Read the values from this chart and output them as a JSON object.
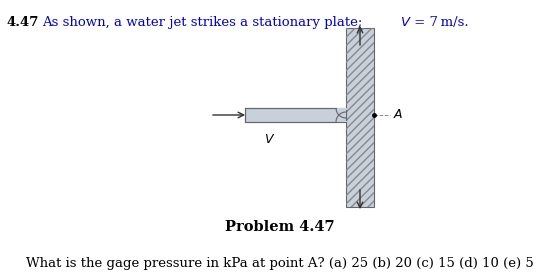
{
  "title_bold": "4.47",
  "title_text": " As shown, a water jet strikes a stationary plate; ",
  "title_italic_V": "V",
  "title_end": " = 7 m/s.",
  "problem_label": "Problem 4.47",
  "question_text": "What is the gage pressure in kPa at point A? (a) 25 (b) 20 (c) 15 (d) 10 (e) 5",
  "plate_color": "#c8d0dc",
  "jet_color": "#c8d0dc",
  "hatch_color": "#999999",
  "background_color": "#ffffff",
  "text_color": "#000000",
  "blue_color": "#0000cc",
  "bold_color": "#000000",
  "title_fontsize": 9.5,
  "question_fontsize": 9.5,
  "problem_fontsize": 10.5
}
